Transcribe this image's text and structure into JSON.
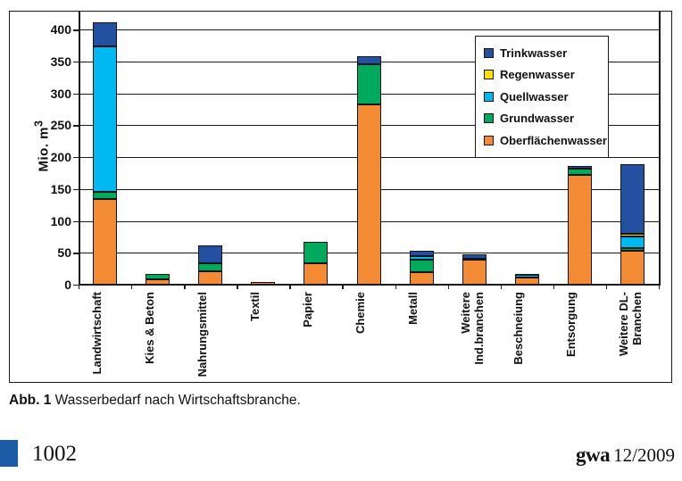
{
  "figure": {
    "caption_label": "Abb. 1",
    "caption_text": " Wasserbedarf nach Wirtschaftsbranche."
  },
  "footer": {
    "page_number": "1002",
    "journal": "gwa",
    "issue": "12/2009",
    "accent_color": "#1A5CA5"
  },
  "chart_data": {
    "type": "bar",
    "stacked": true,
    "title": "",
    "xlabel": "",
    "ylabel": "Mio. m³",
    "ylabel_base": "Mio. m",
    "ylabel_sup": "3",
    "ylim": [
      0,
      417
    ],
    "yticks": [
      0,
      50,
      100,
      150,
      200,
      250,
      300,
      350,
      400
    ],
    "grid": "horizontal-black-lines",
    "legend_position": "inset-upper-right",
    "legend_order_top_to_bottom": [
      "Trinkwasser",
      "Regenwasser",
      "Quellwasser",
      "Grundwasser",
      "Oberflächenwasser"
    ],
    "categories": [
      "Landwirtschaft",
      "Kies & Beton",
      "Nahrungsmittel",
      "Textil",
      "Papier",
      "Chemie",
      "Metall",
      "Weitere\nInd.branchen",
      "Beschneiung",
      "Entsorgung",
      "Weitere DL-\nBranchen"
    ],
    "series": [
      {
        "name": "Oberflächenwasser",
        "color": "#F28B33",
        "values": [
          134,
          8,
          21,
          4,
          34,
          282,
          19,
          39,
          11,
          172,
          53
        ]
      },
      {
        "name": "Grundwasser",
        "color": "#00A95C",
        "values": [
          12,
          9,
          12,
          0,
          33,
          64,
          20,
          2,
          0,
          10,
          4
        ]
      },
      {
        "name": "Quellwasser",
        "color": "#00B9F0",
        "values": [
          228,
          0,
          0,
          0,
          0,
          0,
          6,
          0,
          4,
          0,
          19
        ]
      },
      {
        "name": "Regenwasser",
        "color": "#FFDE00",
        "values": [
          0,
          0,
          0,
          0,
          0,
          0,
          0,
          0,
          0,
          0,
          4
        ]
      },
      {
        "name": "Trinkwasser",
        "color": "#2350A0",
        "values": [
          37,
          0,
          28,
          0,
          0,
          12,
          8,
          6,
          2,
          4,
          109
        ]
      }
    ]
  }
}
